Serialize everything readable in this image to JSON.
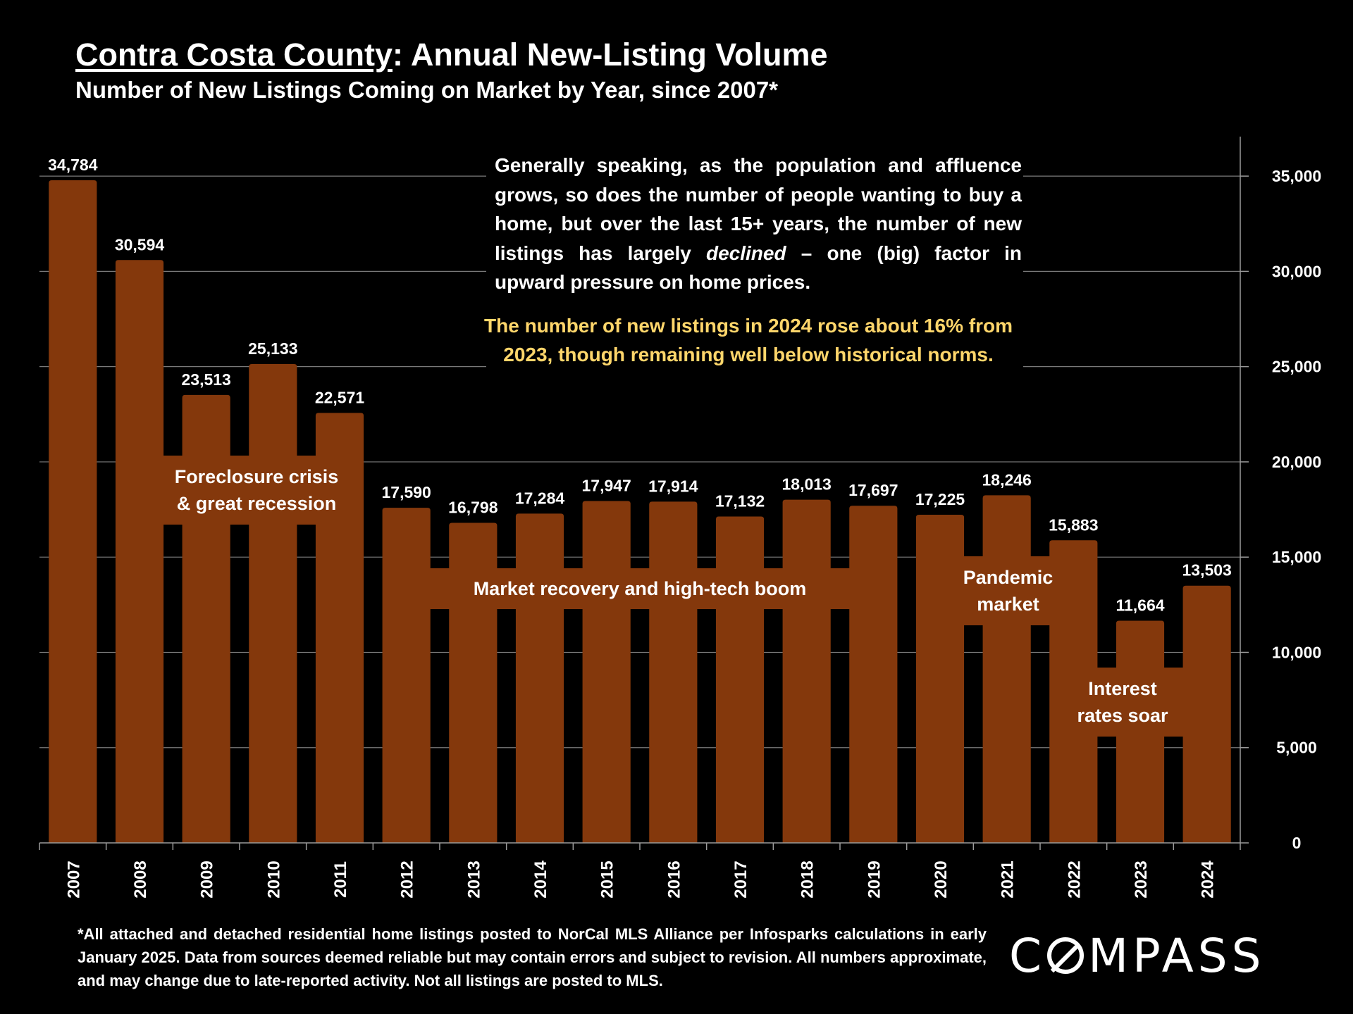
{
  "title": {
    "underlined": "Contra Costa County",
    "rest": ": Annual New-Listing Volume",
    "subtitle": "Number of New Listings Coming on Market by Year, since 2007*"
  },
  "annotations": {
    "commentary_pre": "Generally speaking, as the population and affluence grows, so does the number of people wanting to buy a home, but over the last 15+ years, the number of new listings has largely ",
    "commentary_emphasis": "declined",
    "commentary_post": " – one (big) factor in upward pressure on home prices.",
    "highlight": "The number of new listings in 2024 rose about 16% from 2023, though remaining well below historical norms.",
    "recession_line1": "Foreclosure crisis",
    "recession_line2": "& great recession",
    "recovery": "Market recovery and high-tech boom",
    "pandemic_line1": "Pandemic",
    "pandemic_line2": "market",
    "rates_line1": "Interest",
    "rates_line2": "rates soar"
  },
  "footnote": "*All attached and detached residential home listings posted to NorCal MLS Alliance per Infosparks calculations in early January 2025. Data from sources deemed reliable but may contain errors and subject to revision. All numbers approximate, and may change due to late-reported activity. Not all listings are posted to MLS.",
  "logo_text": {
    "left": "C",
    "right": "MPASS"
  },
  "colors": {
    "bar": "#84380c",
    "background": "#000000",
    "highlight": "#ffd66b"
  },
  "chart_data": {
    "type": "bar",
    "categories": [
      "2007",
      "2008",
      "2009",
      "2010",
      "2011",
      "2012",
      "2013",
      "2014",
      "2015",
      "2016",
      "2017",
      "2018",
      "2019",
      "2020",
      "2021",
      "2022",
      "2023",
      "2024"
    ],
    "values": [
      34784,
      30594,
      23513,
      25133,
      22571,
      17590,
      16798,
      17284,
      17947,
      17914,
      17132,
      18013,
      17697,
      17225,
      18246,
      15883,
      11664,
      13503
    ],
    "data_labels": [
      "34,784",
      "30,594",
      "23,513",
      "25,133",
      "22,571",
      "17,590",
      "16,798",
      "17,284",
      "17,947",
      "17,914",
      "17,132",
      "18,013",
      "17,697",
      "17,225",
      "18,246",
      "15,883",
      "11,664",
      "13,503"
    ],
    "yticks": [
      0,
      5000,
      10000,
      15000,
      20000,
      25000,
      30000,
      35000
    ],
    "ytick_labels": [
      "0",
      "5,000",
      "10,000",
      "15,000",
      "20,000",
      "25,000",
      "30,000",
      "35,000"
    ],
    "ylim": [
      0,
      37000
    ],
    "y_axis_side": "right",
    "x_tick_orientation": "vertical",
    "grid": true,
    "legend": "none"
  }
}
